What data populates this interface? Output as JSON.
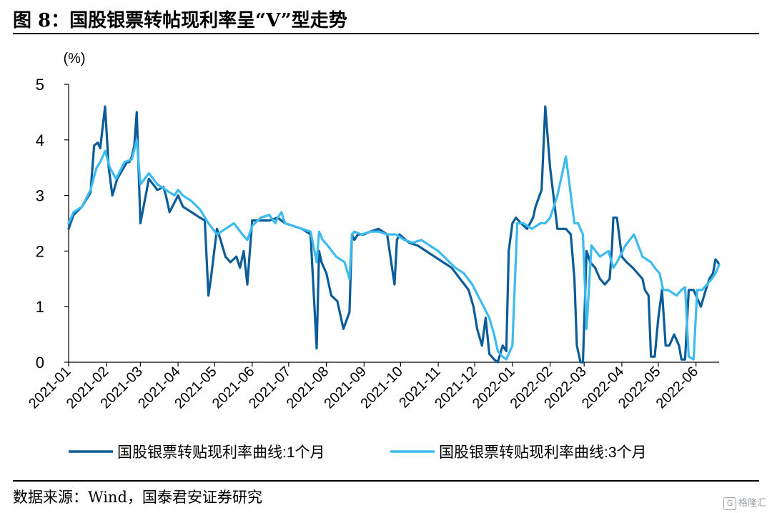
{
  "header": {
    "title": "图 8：国股银票转帖现利率呈“V”型走势"
  },
  "footer": {
    "source": "数据来源：Wind，国泰君安证券研究",
    "watermark": "格隆汇",
    "watermark_icon": "G"
  },
  "chart_data": {
    "type": "line",
    "title": "",
    "xlabel": "",
    "ylabel": "(%)",
    "ylim": [
      0,
      5
    ],
    "yticks": [
      "0",
      "1",
      "2",
      "3",
      "4",
      "5"
    ],
    "xlim": [
      "2021-01-01",
      "2022-06-20"
    ],
    "xticks": [
      "2021-01",
      "2021-02",
      "2021-03",
      "2021-04",
      "2021-05",
      "2021-06",
      "2021-07",
      "2021-08",
      "2021-09",
      "2021-10",
      "2021-11",
      "2021-12",
      "2022-01",
      "2022-02",
      "2022-03",
      "2022-04",
      "2022-05",
      "2022-06"
    ],
    "grid": false,
    "legend_position": "bottom",
    "colors": {
      "1m": "#0b5c99",
      "3m": "#3dbbef"
    },
    "series": [
      {
        "name": "国股银票转贴现利率曲线:1个月",
        "color": "#0b5c99",
        "x": [
          "2021-01-01",
          "2021-01-05",
          "2021-01-12",
          "2021-01-19",
          "2021-01-22",
          "2021-01-25",
          "2021-01-27",
          "2021-01-31",
          "2021-02-03",
          "2021-02-06",
          "2021-02-10",
          "2021-02-18",
          "2021-02-20",
          "2021-02-22",
          "2021-02-24",
          "2021-02-26",
          "2021-03-01",
          "2021-03-08",
          "2021-03-15",
          "2021-03-20",
          "2021-03-22",
          "2021-03-25",
          "2021-04-01",
          "2021-04-05",
          "2021-04-12",
          "2021-04-19",
          "2021-04-23",
          "2021-04-26",
          "2021-04-28",
          "2021-05-03",
          "2021-05-06",
          "2021-05-10",
          "2021-05-14",
          "2021-05-19",
          "2021-05-22",
          "2021-05-25",
          "2021-05-28",
          "2021-06-01",
          "2021-06-08",
          "2021-06-15",
          "2021-06-22",
          "2021-06-28",
          "2021-07-05",
          "2021-07-12",
          "2021-07-19",
          "2021-07-24",
          "2021-07-26",
          "2021-07-28",
          "2021-08-01",
          "2021-08-05",
          "2021-08-10",
          "2021-08-15",
          "2021-08-20",
          "2021-08-22",
          "2021-08-24",
          "2021-08-27",
          "2021-09-01",
          "2021-09-06",
          "2021-09-13",
          "2021-09-20",
          "2021-09-26",
          "2021-09-28",
          "2021-09-30",
          "2021-10-08",
          "2021-10-15",
          "2021-10-22",
          "2021-10-29",
          "2021-11-05",
          "2021-11-12",
          "2021-11-19",
          "2021-11-26",
          "2021-11-30",
          "2021-12-03",
          "2021-12-07",
          "2021-12-10",
          "2021-12-13",
          "2021-12-17",
          "2021-12-20",
          "2021-12-24",
          "2021-12-27",
          "2021-12-29",
          "2022-01-01",
          "2022-01-04",
          "2022-01-08",
          "2022-01-13",
          "2022-01-18",
          "2022-01-20",
          "2022-01-25",
          "2022-01-28",
          "2022-02-01",
          "2022-02-07",
          "2022-02-14",
          "2022-02-18",
          "2022-02-21",
          "2022-02-23",
          "2022-02-26",
          "2022-02-28",
          "2022-03-03",
          "2022-03-06",
          "2022-03-10",
          "2022-03-14",
          "2022-03-18",
          "2022-03-22",
          "2022-03-24",
          "2022-03-25",
          "2022-03-28",
          "2022-04-01",
          "2022-04-05",
          "2022-04-10",
          "2022-04-14",
          "2022-04-18",
          "2022-04-20",
          "2022-04-23",
          "2022-04-25",
          "2022-04-28",
          "2022-05-01",
          "2022-05-04",
          "2022-05-07",
          "2022-05-10",
          "2022-05-14",
          "2022-05-18",
          "2022-05-20",
          "2022-05-23",
          "2022-05-26",
          "2022-05-30",
          "2022-06-01",
          "2022-06-05",
          "2022-06-09",
          "2022-06-12",
          "2022-06-15",
          "2022-06-17",
          "2022-06-19",
          "2022-06-20"
        ],
        "values": [
          2.4,
          2.65,
          2.8,
          3.05,
          3.9,
          3.95,
          3.85,
          4.6,
          3.5,
          3.0,
          3.3,
          3.6,
          3.6,
          3.7,
          3.9,
          4.5,
          2.5,
          3.3,
          3.1,
          3.15,
          3.0,
          2.7,
          3.0,
          2.8,
          2.7,
          2.6,
          2.55,
          1.2,
          1.5,
          2.4,
          2.2,
          1.9,
          1.8,
          1.9,
          1.7,
          2.0,
          1.4,
          2.55,
          2.55,
          2.55,
          2.6,
          2.5,
          2.45,
          2.4,
          2.3,
          0.25,
          2.0,
          1.8,
          1.6,
          1.2,
          1.1,
          0.6,
          0.9,
          2.3,
          2.2,
          2.3,
          2.3,
          2.35,
          2.4,
          2.3,
          1.4,
          2.2,
          2.3,
          2.15,
          2.1,
          2.0,
          1.9,
          1.8,
          1.7,
          1.5,
          1.3,
          1.0,
          0.6,
          0.3,
          0.8,
          0.15,
          0.05,
          0.0,
          0.3,
          0.2,
          2.0,
          2.5,
          2.6,
          2.5,
          2.4,
          2.6,
          2.8,
          3.1,
          4.6,
          3.5,
          2.4,
          2.4,
          2.3,
          1.5,
          0.3,
          0.0,
          0.0,
          2.0,
          1.8,
          1.7,
          1.5,
          1.4,
          1.5,
          2.1,
          2.6,
          2.6,
          1.9,
          1.8,
          1.7,
          1.6,
          1.5,
          1.3,
          1.2,
          0.1,
          0.1,
          0.8,
          1.3,
          0.3,
          0.3,
          0.5,
          0.3,
          0.05,
          0.05,
          1.3,
          1.3,
          1.2,
          1.0,
          1.3,
          1.5,
          1.6,
          1.85,
          1.8,
          1.75
        ]
      },
      {
        "name": "国股银票转贴现利率曲线:3个月",
        "color": "#3dbbef",
        "x": [
          "2021-01-01",
          "2021-01-05",
          "2021-01-12",
          "2021-01-19",
          "2021-01-24",
          "2021-01-27",
          "2021-01-31",
          "2021-02-04",
          "2021-02-09",
          "2021-02-16",
          "2021-02-22",
          "2021-02-26",
          "2021-03-01",
          "2021-03-08",
          "2021-03-15",
          "2021-03-22",
          "2021-03-29",
          "2021-04-01",
          "2021-04-05",
          "2021-04-12",
          "2021-04-19",
          "2021-04-26",
          "2021-05-03",
          "2021-05-10",
          "2021-05-17",
          "2021-05-24",
          "2021-05-28",
          "2021-06-01",
          "2021-06-08",
          "2021-06-15",
          "2021-06-20",
          "2021-06-22",
          "2021-06-25",
          "2021-06-28",
          "2021-07-05",
          "2021-07-12",
          "2021-07-19",
          "2021-07-24",
          "2021-07-26",
          "2021-07-29",
          "2021-08-02",
          "2021-08-09",
          "2021-08-16",
          "2021-08-20",
          "2021-08-22",
          "2021-08-24",
          "2021-08-30",
          "2021-09-06",
          "2021-09-13",
          "2021-09-20",
          "2021-09-27",
          "2021-10-04",
          "2021-10-11",
          "2021-10-18",
          "2021-10-25",
          "2021-11-01",
          "2021-11-08",
          "2021-11-15",
          "2021-11-22",
          "2021-11-29",
          "2021-12-06",
          "2021-12-13",
          "2021-12-17",
          "2021-12-20",
          "2021-12-24",
          "2021-12-27",
          "2022-01-01",
          "2022-01-05",
          "2022-01-10",
          "2022-01-17",
          "2022-01-24",
          "2022-01-28",
          "2022-02-01",
          "2022-02-07",
          "2022-02-14",
          "2022-02-21",
          "2022-02-24",
          "2022-02-26",
          "2022-02-28",
          "2022-03-03",
          "2022-03-07",
          "2022-03-14",
          "2022-03-21",
          "2022-03-25",
          "2022-03-28",
          "2022-04-04",
          "2022-04-11",
          "2022-04-18",
          "2022-04-25",
          "2022-04-28",
          "2022-05-02",
          "2022-05-05",
          "2022-05-09",
          "2022-05-16",
          "2022-05-20",
          "2022-05-23",
          "2022-05-26",
          "2022-05-30",
          "2022-06-02",
          "2022-06-06",
          "2022-06-10",
          "2022-06-14",
          "2022-06-17",
          "2022-06-20"
        ],
        "values": [
          2.5,
          2.7,
          2.8,
          3.1,
          3.5,
          3.6,
          3.8,
          3.5,
          3.3,
          3.6,
          3.65,
          4.0,
          3.2,
          3.4,
          3.2,
          3.1,
          3.0,
          3.1,
          3.0,
          2.9,
          2.75,
          2.5,
          2.3,
          2.4,
          2.5,
          2.3,
          2.2,
          2.45,
          2.6,
          2.65,
          2.5,
          2.6,
          2.7,
          2.5,
          2.45,
          2.4,
          2.35,
          1.8,
          2.35,
          2.2,
          2.1,
          1.9,
          1.8,
          1.5,
          2.3,
          2.35,
          2.3,
          2.35,
          2.35,
          2.3,
          2.3,
          2.2,
          2.15,
          2.2,
          2.1,
          2.0,
          1.85,
          1.7,
          1.6,
          1.4,
          1.1,
          0.8,
          0.5,
          0.2,
          0.1,
          0.05,
          0.3,
          2.5,
          2.5,
          2.4,
          2.5,
          2.5,
          2.6,
          3.0,
          3.7,
          2.5,
          2.5,
          2.4,
          2.3,
          0.6,
          2.1,
          1.9,
          2.0,
          1.7,
          1.8,
          2.1,
          2.3,
          1.9,
          1.8,
          1.7,
          1.6,
          1.3,
          1.3,
          1.2,
          1.3,
          1.35,
          0.1,
          0.05,
          1.3,
          1.3,
          1.4,
          1.5,
          1.6,
          1.75
        ]
      }
    ]
  }
}
